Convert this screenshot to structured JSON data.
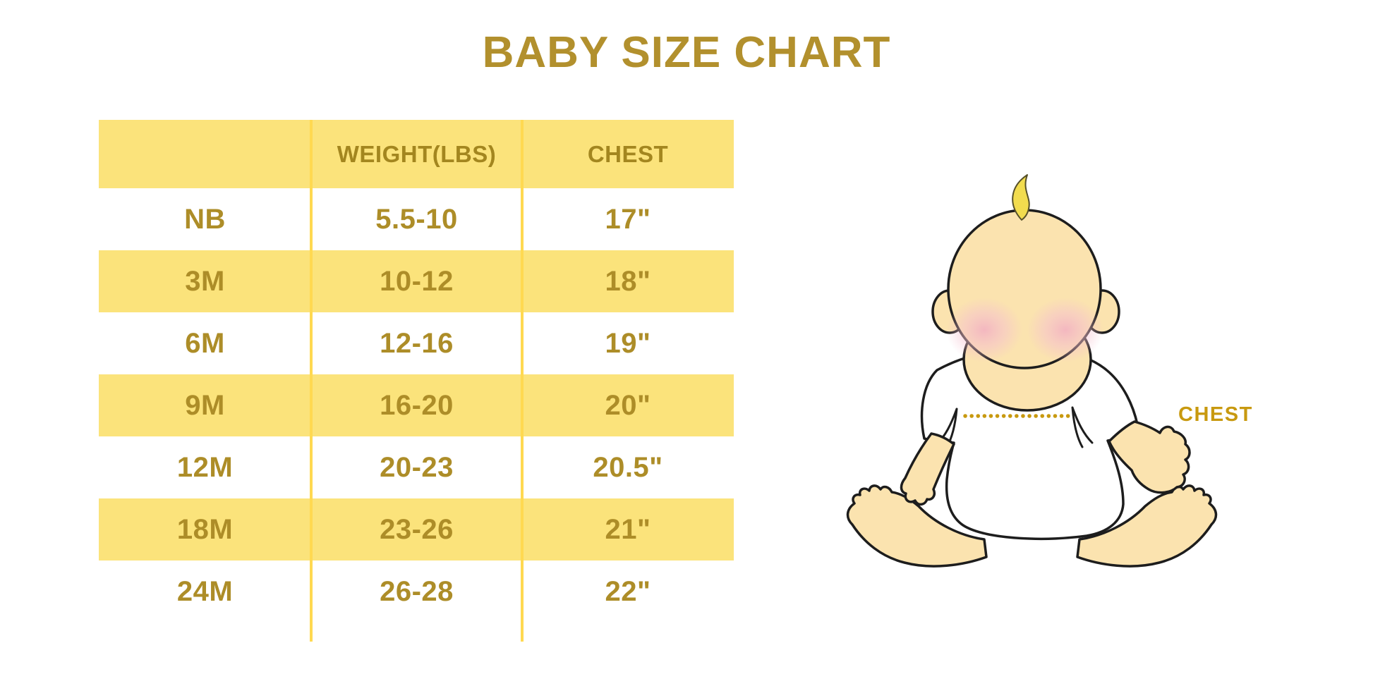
{
  "chart_data": {
    "type": "table",
    "title": "BABY SIZE CHART",
    "columns": [
      "",
      "WEIGHT(LBS)",
      "CHEST"
    ],
    "rows": [
      [
        "NB",
        "5.5-10",
        "17\""
      ],
      [
        "3M",
        "10-12",
        "18\""
      ],
      [
        "6M",
        "12-16",
        "19\""
      ],
      [
        "9M",
        "16-20",
        "20\""
      ],
      [
        "12M",
        "20-23",
        "20.5\""
      ],
      [
        "18M",
        "23-26",
        "21\""
      ],
      [
        "24M",
        "26-28",
        "22\""
      ]
    ],
    "layout": "alternating yellow and white row bands, no outer border, two yellow column divider lines"
  },
  "illustration": {
    "chest_label": "CHEST",
    "description": "cartoon sitting baby in white onesie with dotted measurement line across chest"
  },
  "colors": {
    "title_gold": "#b2902d",
    "table_text_gold": "#ad8d28",
    "row_band_yellow": "#fbe37b",
    "divider_yellow": "#ffd951",
    "chest_accent_gold": "#c8990f",
    "baby_skin": "#fbe3af",
    "blush_pink": "#f2afc2",
    "hair_yellow": "#f2dc4e",
    "background": "#ffffff"
  }
}
